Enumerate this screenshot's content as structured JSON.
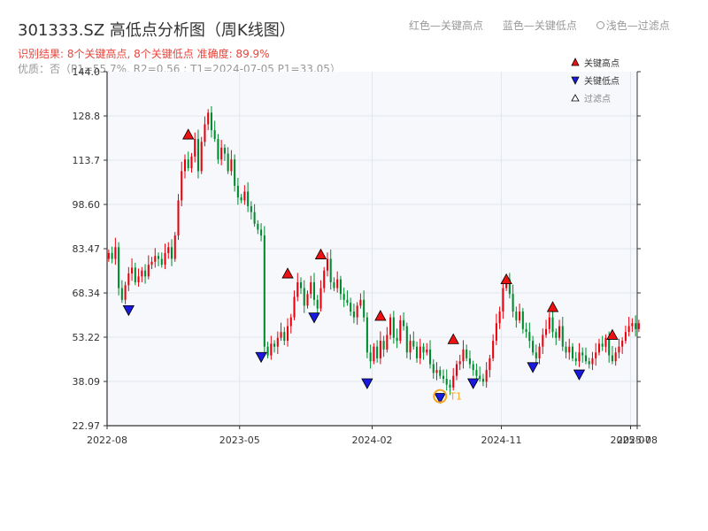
{
  "header": {
    "title": "301333.SZ 高低点分析图（周K线图）",
    "legend_red": "红色—关键高点",
    "legend_blue": "蓝色—关键低点",
    "legend_light": "浅色—过滤点",
    "result_line": "识别结果: 8个关键高点, 8个关键低点  准确度: 89.9%",
    "quality_line": "优质：否（P1=55.7%, R2=0.56 ; T1=2024-07-05 P1=33.05）"
  },
  "legend": {
    "high_label": "关键高点",
    "low_label": "关键低点",
    "filtered_label": "过滤点"
  },
  "chart_data": {
    "type": "candlestick",
    "ylim": [
      22.97,
      144.0
    ],
    "y_ticks": [
      "22.97",
      "38.09",
      "53.22",
      "68.34",
      "83.47",
      "98.60",
      "113.7",
      "128.8",
      "144.0"
    ],
    "x_ticks": [
      {
        "label": "2022-08",
        "week": 0
      },
      {
        "label": "2023-05",
        "week": 40
      },
      {
        "label": "2024-02",
        "week": 80
      },
      {
        "label": "2024-11",
        "week": 119
      },
      {
        "label": "2025-07",
        "week": 158
      },
      {
        "label": "2025-08",
        "week": 160
      }
    ],
    "weeks": 160,
    "colors": {
      "up": "#e8000b",
      "down": "#008a2e",
      "high_marker": "#ee1111",
      "low_marker": "#1a1adf",
      "t1": "#f5a623",
      "axis": "#333333",
      "grid": "#e3e6ec",
      "plot_bg": "#f6f8fb"
    },
    "closes": [
      82,
      80,
      84,
      70,
      66,
      71,
      75,
      77,
      72,
      74,
      76,
      74,
      78,
      79,
      81,
      80,
      78,
      82,
      84,
      80,
      88,
      100,
      110,
      114,
      111,
      115,
      121,
      110,
      120,
      126,
      130,
      124,
      121,
      114,
      118,
      116,
      110,
      114,
      105,
      101,
      100,
      103,
      98,
      96,
      92,
      90,
      88,
      50,
      47,
      51,
      50,
      53,
      55,
      52,
      57,
      60,
      67,
      72,
      70,
      64,
      68,
      72,
      66,
      63,
      70,
      76,
      80,
      72,
      70,
      73,
      68,
      66,
      65,
      62,
      60,
      64,
      66,
      60,
      48,
      45,
      50,
      46,
      52,
      49,
      54,
      60,
      53,
      52,
      59,
      57,
      48,
      52,
      50,
      46,
      50,
      48,
      49,
      44,
      41,
      42,
      40,
      39,
      37,
      36,
      40,
      44,
      45,
      49,
      46,
      44,
      42,
      40,
      39,
      38,
      42,
      46,
      52,
      58,
      62,
      70,
      73,
      68,
      62,
      59,
      62,
      56,
      55,
      52,
      48,
      46,
      50,
      54,
      56,
      60,
      55,
      53,
      57,
      50,
      48,
      50,
      46,
      45,
      48,
      47,
      45,
      44,
      46,
      48,
      51,
      50,
      53,
      47,
      45,
      48,
      50,
      52,
      55,
      57,
      58,
      56,
      58
    ]
  },
  "key_points": {
    "highs": [
      {
        "week": 24,
        "price": 122.5
      },
      {
        "week": 54,
        "price": 75.0
      },
      {
        "week": 64,
        "price": 81.5
      },
      {
        "week": 82,
        "price": 60.5
      },
      {
        "week": 104,
        "price": 52.5
      },
      {
        "week": 120,
        "price": 73.0
      },
      {
        "week": 134,
        "price": 63.5
      },
      {
        "week": 152,
        "price": 54.0
      }
    ],
    "lows": [
      {
        "week": 6,
        "price": 62.5
      },
      {
        "week": 46,
        "price": 46.5
      },
      {
        "week": 62,
        "price": 60.0
      },
      {
        "week": 78,
        "price": 37.5
      },
      {
        "week": 100,
        "price": 32.5
      },
      {
        "week": 110,
        "price": 37.5
      },
      {
        "week": 128,
        "price": 43.0
      },
      {
        "week": 142,
        "price": 40.5
      }
    ]
  },
  "t1": {
    "label": "T1",
    "week": 100,
    "price": 33.05
  }
}
